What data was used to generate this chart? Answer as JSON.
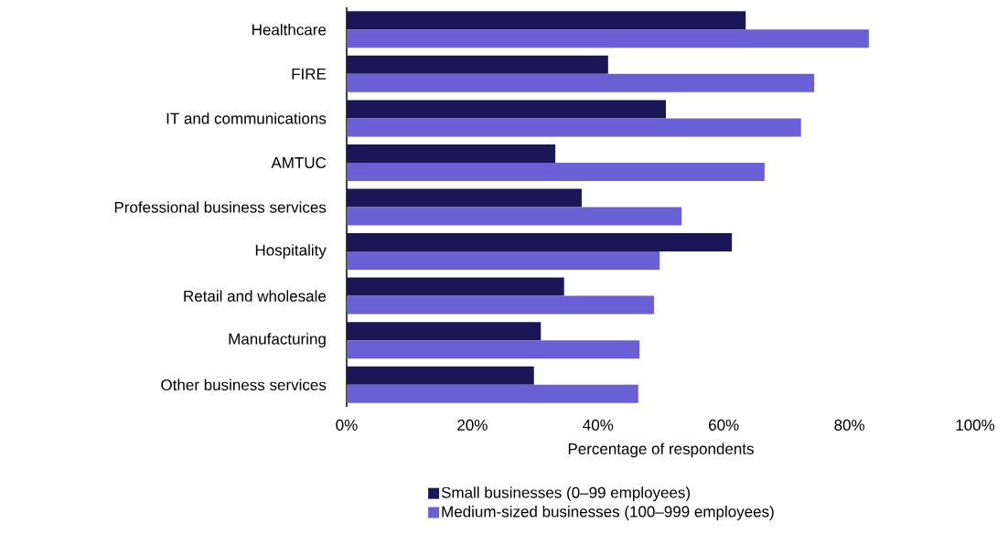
{
  "chart_data": {
    "type": "bar",
    "orientation": "horizontal",
    "xlabel": "Percentage of respondents",
    "categories": [
      "Healthcare",
      "FIRE",
      "IT and communications",
      "AMTUC",
      "Professional business services",
      "Hospitality",
      "Retail and wholesale",
      "Manufacturing",
      "Other business services"
    ],
    "series": [
      {
        "name": "Small businesses (0–99 employees)",
        "color": "#1b1757",
        "values": [
          63.5,
          41.6,
          50.8,
          33.2,
          37.4,
          61.3,
          34.6,
          30.9,
          29.8
        ]
      },
      {
        "name": "Medium-sized businesses (100–999 employees)",
        "color": "#6a60d6",
        "values": [
          83.1,
          74.4,
          72.3,
          66.5,
          53.3,
          49.8,
          48.9,
          46.6,
          46.4
        ]
      }
    ],
    "xlim": [
      0,
      100
    ],
    "xticks": [
      {
        "value": 0,
        "label": "0%"
      },
      {
        "value": 20,
        "label": "20%"
      },
      {
        "value": 40,
        "label": "40%"
      },
      {
        "value": 60,
        "label": "60%"
      },
      {
        "value": 80,
        "label": "80%"
      },
      {
        "value": 100,
        "label": "100%"
      }
    ],
    "legend": "bottom",
    "grid": false
  }
}
